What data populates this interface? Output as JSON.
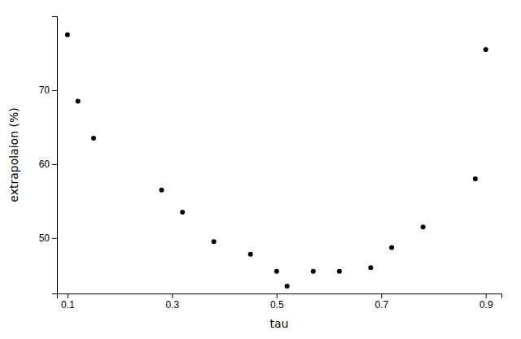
{
  "chart_data": {
    "type": "scatter",
    "x": [
      0.1,
      0.12,
      0.15,
      0.28,
      0.32,
      0.38,
      0.45,
      0.5,
      0.52,
      0.57,
      0.62,
      0.68,
      0.72,
      0.78,
      0.88,
      0.9
    ],
    "values": [
      77.5,
      68.5,
      63.5,
      56.5,
      53.5,
      49.5,
      47.8,
      45.5,
      43.5,
      45.5,
      45.5,
      46.0,
      48.7,
      51.5,
      58.0,
      75.5
    ],
    "xlabel": "tau",
    "ylabel": "extrapolaion (%)",
    "xlim": [
      0.08,
      0.93
    ],
    "ylim": [
      42.5,
      80
    ],
    "xticks": [
      0.1,
      0.3,
      0.5,
      0.7,
      0.9
    ],
    "yticks": [
      50,
      60,
      70
    ],
    "color": "#000000"
  }
}
